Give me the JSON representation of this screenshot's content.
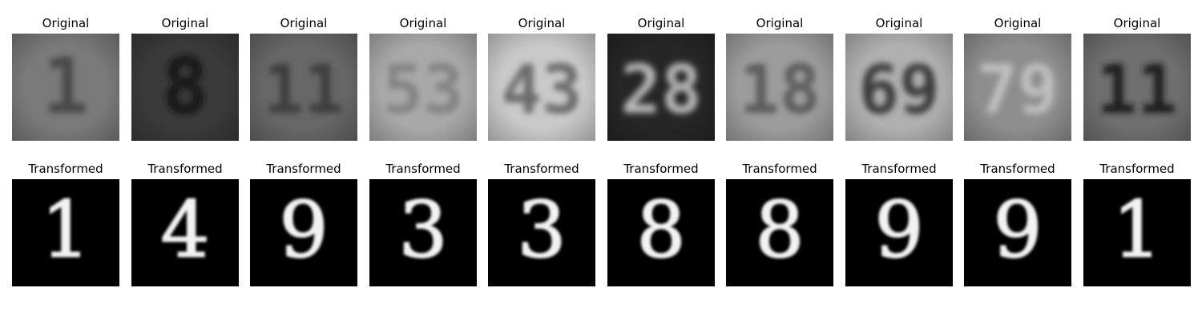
{
  "rows": [
    {
      "kind": "original",
      "panels": [
        {
          "title": "Original",
          "digits": "1",
          "bg": "#7a7a7a",
          "fg": "#4a4a4a"
        },
        {
          "title": "Original",
          "digits": "8",
          "bg": "#3a3a3a",
          "fg": "#161616"
        },
        {
          "title": "Original",
          "digits": "11",
          "bg": "#676767",
          "fg": "#3e3e3e"
        },
        {
          "title": "Original",
          "digits": "53",
          "bg": "#a9a9a9",
          "fg": "#838383"
        },
        {
          "title": "Original",
          "digits": "43",
          "bg": "#c9c9c9",
          "fg": "#6a6a6a"
        },
        {
          "title": "Original",
          "digits": "28",
          "bg": "#262626",
          "fg": "#b8b8b8"
        },
        {
          "title": "Original",
          "digits": "18",
          "bg": "#9c9c9c",
          "fg": "#5c5c5c"
        },
        {
          "title": "Original",
          "digits": "69",
          "bg": "#b0b0b0",
          "fg": "#3a3a3a"
        },
        {
          "title": "Original",
          "digits": "79",
          "bg": "#8e8e8e",
          "fg": "#c0c0c0"
        },
        {
          "title": "Original",
          "digits": "11",
          "bg": "#6f6f6f",
          "fg": "#1f1f1f"
        }
      ]
    },
    {
      "kind": "transformed",
      "panels": [
        {
          "title": "Transformed",
          "digits": "1",
          "bg": "#000000",
          "fg": "#f2f2f2"
        },
        {
          "title": "Transformed",
          "digits": "4",
          "bg": "#000000",
          "fg": "#f2f2f2"
        },
        {
          "title": "Transformed",
          "digits": "9",
          "bg": "#000000",
          "fg": "#f2f2f2"
        },
        {
          "title": "Transformed",
          "digits": "3",
          "bg": "#000000",
          "fg": "#f2f2f2"
        },
        {
          "title": "Transformed",
          "digits": "3",
          "bg": "#000000",
          "fg": "#f2f2f2"
        },
        {
          "title": "Transformed",
          "digits": "8",
          "bg": "#000000",
          "fg": "#f2f2f2"
        },
        {
          "title": "Transformed",
          "digits": "8",
          "bg": "#000000",
          "fg": "#f2f2f2"
        },
        {
          "title": "Transformed",
          "digits": "9",
          "bg": "#000000",
          "fg": "#f2f2f2"
        },
        {
          "title": "Transformed",
          "digits": "9",
          "bg": "#000000",
          "fg": "#f2f2f2"
        },
        {
          "title": "Transformed",
          "digits": "1",
          "bg": "#000000",
          "fg": "#f2f2f2"
        }
      ]
    }
  ]
}
